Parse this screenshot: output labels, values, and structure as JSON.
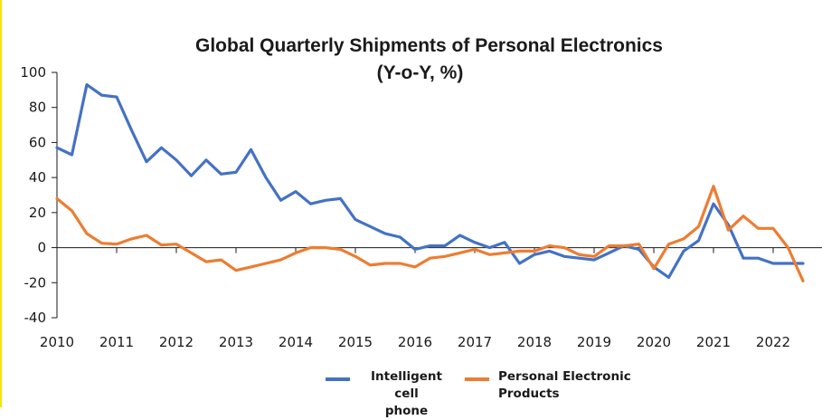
{
  "chart_data": {
    "type": "line",
    "title": "Global Quarterly Shipments of Personal Electronics",
    "subtitle": "(Y-o-Y, %)",
    "xlabel": "",
    "ylabel": "",
    "xlim": [
      2010,
      2022.75
    ],
    "ylim": [
      -40,
      100
    ],
    "yticks": [
      100,
      80,
      60,
      40,
      20,
      0,
      -20,
      -40
    ],
    "xticks": [
      "2010",
      "2011",
      "2012",
      "2013",
      "2014",
      "2015",
      "2016",
      "2017",
      "2018",
      "2019",
      "2020",
      "2021",
      "2022"
    ],
    "grid": false,
    "legend_position": "bottom",
    "x_start": 2010,
    "x_step": 0.25,
    "series": [
      {
        "name": "Intelligent cell phone",
        "color": "#4472c4",
        "values": [
          57,
          53,
          93,
          87,
          86,
          67,
          49,
          57,
          50,
          41,
          50,
          42,
          43,
          56,
          40,
          27,
          32,
          25,
          27,
          28,
          16,
          12,
          8,
          6,
          -1,
          1,
          1,
          7,
          3,
          0,
          3,
          -9,
          -4,
          -2,
          -5,
          -6,
          -7,
          -3,
          1,
          -1,
          -11,
          -17,
          -2,
          4,
          25,
          13,
          -6,
          -6,
          -9,
          -9,
          -9
        ]
      },
      {
        "name": "Personal Electronic Products",
        "color": "#ed7d31",
        "values": [
          28,
          21,
          8,
          2.5,
          2,
          5,
          7,
          1.5,
          2,
          -3,
          -8,
          -7,
          -13,
          -11,
          -9,
          -7,
          -3,
          0,
          0,
          -1,
          -5,
          -10,
          -9,
          -9,
          -11,
          -6,
          -5,
          -3,
          -1,
          -4,
          -3,
          -2,
          -2,
          1,
          0,
          -4,
          -5,
          1,
          1,
          2,
          -12,
          2,
          5,
          12,
          35,
          10,
          18,
          11,
          11,
          0,
          -19
        ]
      }
    ]
  },
  "legend": {
    "item1_line1": "Intelligent cell",
    "item1_line2": "phone",
    "item2_line1": "Personal Electronic",
    "item2_line2": "Products"
  }
}
